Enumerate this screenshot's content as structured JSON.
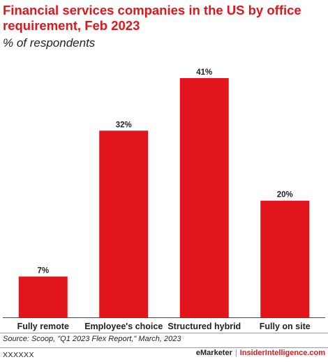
{
  "header": {
    "title": "Financial services companies in the US by office requirement, Feb 2023",
    "subtitle": "% of respondents"
  },
  "chart_data": {
    "type": "bar",
    "categories": [
      "Fully remote",
      "Employee's choice",
      "Structured hybrid",
      "Fully on site"
    ],
    "values": [
      7,
      32,
      41,
      20
    ],
    "value_labels": [
      "7%",
      "32%",
      "41%",
      "20%"
    ],
    "ylim": [
      0,
      41
    ],
    "bar_color": "#e3151c",
    "grid": false,
    "legend": "none"
  },
  "footer": {
    "source": "Source: Scoop, \"Q1 2023 Flex Report,\" March, 2023",
    "id": "XXXXXX",
    "brand_left": "eMarketer",
    "separator": "|",
    "brand_right": "InsiderIntelligence.com"
  },
  "colors": {
    "accent": "#e3151c",
    "text": "#222222"
  }
}
